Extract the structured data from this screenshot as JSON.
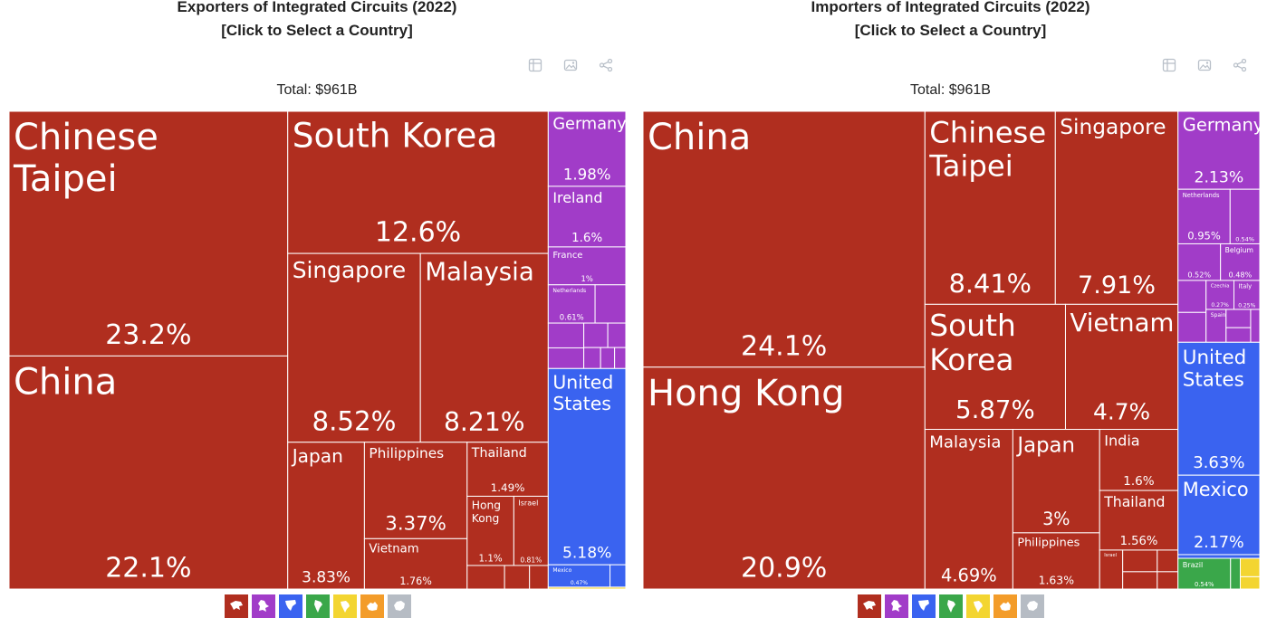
{
  "colors": {
    "Asia": "#b02e1f",
    "Europe": "#a13cc8",
    "North America": "#3a63f0",
    "South America": "#3aa74a",
    "Africa": "#f3d531",
    "Oceania": "#f39c2a",
    "Antarctica": "#b6bcc4"
  },
  "toolbar_icons": [
    "table-icon",
    "image-icon",
    "share-icon"
  ],
  "legend": [
    {
      "continent": "Asia",
      "icon": "asia-icon"
    },
    {
      "continent": "Europe",
      "icon": "europe-icon"
    },
    {
      "continent": "North America",
      "icon": "north-america-icon"
    },
    {
      "continent": "South America",
      "icon": "south-america-icon"
    },
    {
      "continent": "Africa",
      "icon": "africa-icon"
    },
    {
      "continent": "Oceania",
      "icon": "oceania-icon"
    },
    {
      "continent": "Antarctica",
      "icon": "antarctica-icon"
    }
  ],
  "chart_data": [
    {
      "type": "treemap",
      "title": "Exporters of Integrated Circuits (2022)",
      "subtitle": "[Click to Select a Country]",
      "total_label": "Total: $961B",
      "unit": "% of total",
      "nodes": [
        {
          "name": "Chinese Taipei",
          "value": 23.2,
          "continent": "Asia",
          "pct": "23.2%"
        },
        {
          "name": "China",
          "value": 22.1,
          "continent": "Asia",
          "pct": "22.1%"
        },
        {
          "name": "South Korea",
          "value": 12.6,
          "continent": "Asia",
          "pct": "12.6%"
        },
        {
          "name": "Singapore",
          "value": 8.52,
          "continent": "Asia",
          "pct": "8.52%"
        },
        {
          "name": "Malaysia",
          "value": 8.21,
          "continent": "Asia",
          "pct": "8.21%"
        },
        {
          "name": "Japan",
          "value": 3.83,
          "continent": "Asia",
          "pct": "3.83%"
        },
        {
          "name": "Philippines",
          "value": 3.37,
          "continent": "Asia",
          "pct": "3.37%"
        },
        {
          "name": "Vietnam",
          "value": 1.76,
          "continent": "Asia",
          "pct": "1.76%"
        },
        {
          "name": "Thailand",
          "value": 1.49,
          "continent": "Asia",
          "pct": "1.49%"
        },
        {
          "name": "Hong Kong",
          "value": 1.1,
          "continent": "Asia",
          "pct": "1.1%"
        },
        {
          "name": "Israel",
          "value": 0.81,
          "continent": "Asia",
          "pct": "0.81%"
        },
        {
          "name": "",
          "value": 0.3,
          "continent": "Asia",
          "pct": ""
        },
        {
          "name": "",
          "value": 0.2,
          "continent": "Asia",
          "pct": ""
        },
        {
          "name": "",
          "value": 0.15,
          "continent": "Asia",
          "pct": ""
        },
        {
          "name": "Germany",
          "value": 1.98,
          "continent": "Europe",
          "pct": "1.98%"
        },
        {
          "name": "Ireland",
          "value": 1.6,
          "continent": "Europe",
          "pct": "1.6%"
        },
        {
          "name": "France",
          "value": 1.0,
          "continent": "Europe",
          "pct": "1%"
        },
        {
          "name": "Netherlands",
          "value": 0.61,
          "continent": "Europe",
          "pct": "0.61%"
        },
        {
          "name": "",
          "value": 0.4,
          "continent": "Europe",
          "pct": ""
        },
        {
          "name": "",
          "value": 0.3,
          "continent": "Europe",
          "pct": ""
        },
        {
          "name": "",
          "value": 0.25,
          "continent": "Europe",
          "pct": ""
        },
        {
          "name": "",
          "value": 0.2,
          "continent": "Europe",
          "pct": ""
        },
        {
          "name": "",
          "value": 0.15,
          "continent": "Europe",
          "pct": ""
        },
        {
          "name": "",
          "value": 0.12,
          "continent": "Europe",
          "pct": ""
        },
        {
          "name": "",
          "value": 0.1,
          "continent": "Europe",
          "pct": ""
        },
        {
          "name": "",
          "value": 0.08,
          "continent": "Europe",
          "pct": ""
        },
        {
          "name": "United States",
          "value": 5.18,
          "continent": "North America",
          "pct": "5.18%"
        },
        {
          "name": "Mexico",
          "value": 0.47,
          "continent": "North America",
          "pct": "0.47%"
        },
        {
          "name": "",
          "value": 0.12,
          "continent": "North America",
          "pct": ""
        },
        {
          "name": "",
          "value": 0.05,
          "continent": "Africa",
          "pct": ""
        }
      ]
    },
    {
      "type": "treemap",
      "title": "Importers of Integrated Circuits (2022)",
      "subtitle": "[Click to Select a Country]",
      "total_label": "Total: $961B",
      "unit": "% of total",
      "nodes": [
        {
          "name": "China",
          "value": 24.1,
          "continent": "Asia",
          "pct": "24.1%"
        },
        {
          "name": "Hong Kong",
          "value": 20.9,
          "continent": "Asia",
          "pct": "20.9%"
        },
        {
          "name": "Chinese Taipei",
          "value": 8.41,
          "continent": "Asia",
          "pct": "8.41%"
        },
        {
          "name": "Singapore",
          "value": 7.91,
          "continent": "Asia",
          "pct": "7.91%"
        },
        {
          "name": "South Korea",
          "value": 5.87,
          "continent": "Asia",
          "pct": "5.87%"
        },
        {
          "name": "Vietnam",
          "value": 4.7,
          "continent": "Asia",
          "pct": "4.7%"
        },
        {
          "name": "Malaysia",
          "value": 4.69,
          "continent": "Asia",
          "pct": "4.69%"
        },
        {
          "name": "Japan",
          "value": 3.0,
          "continent": "Asia",
          "pct": "3%"
        },
        {
          "name": "Philippines",
          "value": 1.63,
          "continent": "Asia",
          "pct": "1.63%"
        },
        {
          "name": "India",
          "value": 1.6,
          "continent": "Asia",
          "pct": "1.6%"
        },
        {
          "name": "Thailand",
          "value": 1.56,
          "continent": "Asia",
          "pct": "1.56%"
        },
        {
          "name": "Israel",
          "value": 0.3,
          "continent": "Asia",
          "pct": ""
        },
        {
          "name": "",
          "value": 0.25,
          "continent": "Asia",
          "pct": ""
        },
        {
          "name": "",
          "value": 0.2,
          "continent": "Asia",
          "pct": ""
        },
        {
          "name": "",
          "value": 0.15,
          "continent": "Asia",
          "pct": ""
        },
        {
          "name": "",
          "value": 0.12,
          "continent": "Asia",
          "pct": ""
        },
        {
          "name": "Germany",
          "value": 2.13,
          "continent": "Europe",
          "pct": "2.13%"
        },
        {
          "name": "Netherlands",
          "value": 0.95,
          "continent": "Europe",
          "pct": "0.95%"
        },
        {
          "name": "",
          "value": 0.54,
          "continent": "Europe",
          "pct": "0.54%"
        },
        {
          "name": "",
          "value": 0.52,
          "continent": "Europe",
          "pct": "0.52%"
        },
        {
          "name": "Belgium",
          "value": 0.48,
          "continent": "Europe",
          "pct": "0.48%"
        },
        {
          "name": "",
          "value": 0.3,
          "continent": "Europe",
          "pct": ""
        },
        {
          "name": "",
          "value": 0.28,
          "continent": "Europe",
          "pct": ""
        },
        {
          "name": "Czechia",
          "value": 0.27,
          "continent": "Europe",
          "pct": "0.27%"
        },
        {
          "name": "Italy",
          "value": 0.25,
          "continent": "Europe",
          "pct": "0.25%"
        },
        {
          "name": "Spain",
          "value": 0.22,
          "continent": "Europe",
          "pct": ""
        },
        {
          "name": "",
          "value": 0.15,
          "continent": "Europe",
          "pct": ""
        },
        {
          "name": "",
          "value": 0.12,
          "continent": "Europe",
          "pct": ""
        },
        {
          "name": "",
          "value": 0.1,
          "continent": "Europe",
          "pct": ""
        },
        {
          "name": "United States",
          "value": 3.63,
          "continent": "North America",
          "pct": "3.63%"
        },
        {
          "name": "Mexico",
          "value": 2.17,
          "continent": "North America",
          "pct": "2.17%"
        },
        {
          "name": "",
          "value": 0.1,
          "continent": "North America",
          "pct": ""
        },
        {
          "name": "Brazil",
          "value": 0.54,
          "continent": "South America",
          "pct": "0.54%"
        },
        {
          "name": "",
          "value": 0.1,
          "continent": "South America",
          "pct": ""
        },
        {
          "name": "",
          "value": 0.12,
          "continent": "Africa",
          "pct": ""
        },
        {
          "name": "",
          "value": 0.08,
          "continent": "Africa",
          "pct": ""
        }
      ]
    }
  ]
}
